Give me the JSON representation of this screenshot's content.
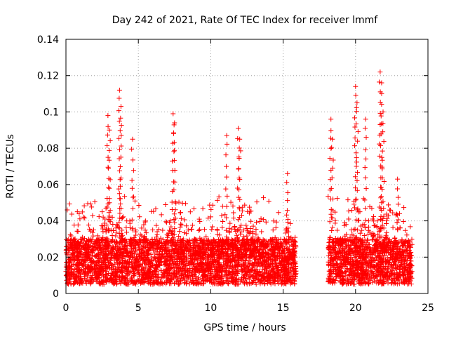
{
  "chart_data": {
    "type": "scatter",
    "title": "Day 242 of 2021, Rate Of TEC Index for receiver lmmf",
    "xlabel": "GPS time / hours",
    "ylabel": "ROTI / TECUs",
    "xlim": [
      0,
      25
    ],
    "ylim": [
      0,
      0.14
    ],
    "xticks": [
      0,
      5,
      10,
      15,
      20,
      25
    ],
    "xtick_labels": [
      "0",
      "5",
      "10",
      "15",
      "20",
      "25"
    ],
    "yticks": [
      0,
      0.02,
      0.04,
      0.06,
      0.08,
      0.1,
      0.12,
      0.14
    ],
    "ytick_labels": [
      "0",
      "0.02",
      "0.04",
      "0.06",
      "0.08",
      "0.1",
      "0.12",
      "0.14"
    ],
    "grid": true,
    "marker": "plus",
    "color": "#ff0000",
    "coverage_hours": [
      [
        0.0,
        15.9
      ],
      [
        18.1,
        23.9
      ]
    ],
    "gap_hours": [
      15.9,
      18.1
    ],
    "typical_range": [
      0.005,
      0.03
    ],
    "series": [
      {
        "name": "ROTI",
        "x": [
          0.2,
          0.5,
          0.8,
          1.1,
          1.4,
          1.6,
          1.9,
          2.2,
          2.5,
          2.8,
          3.0,
          3.2,
          3.5,
          3.7,
          3.9,
          4.2,
          4.5,
          4.8,
          5.1,
          5.4,
          5.7,
          6.0,
          6.3,
          6.6,
          6.9,
          7.2,
          7.4,
          7.7,
          8.0,
          8.3,
          8.6,
          8.9,
          9.2,
          9.5,
          9.8,
          10.1,
          10.4,
          10.7,
          11.0,
          11.2,
          11.5,
          11.8,
          12.1,
          12.4,
          12.7,
          13.0,
          13.3,
          13.6,
          13.9,
          14.2,
          14.5,
          14.8,
          15.1,
          15.4,
          15.7,
          18.2,
          18.5,
          18.8,
          19.1,
          19.4,
          19.7,
          20.0,
          20.3,
          20.6,
          20.9,
          21.2,
          21.5,
          21.8,
          22.1,
          22.4,
          22.7,
          23.0,
          23.3,
          23.6,
          23.8,
          2.9,
          3.0,
          3.7,
          3.8,
          4.6,
          7.4,
          7.5,
          11.1,
          11.9,
          12.0,
          15.3,
          18.3,
          18.4,
          20.0,
          20.1,
          20.7,
          21.7,
          21.8,
          21.9,
          22.9
        ],
        "y": [
          0.014,
          0.022,
          0.018,
          0.03,
          0.025,
          0.021,
          0.035,
          0.028,
          0.045,
          0.03,
          0.05,
          0.042,
          0.038,
          0.055,
          0.032,
          0.04,
          0.027,
          0.035,
          0.024,
          0.03,
          0.022,
          0.028,
          0.034,
          0.02,
          0.026,
          0.04,
          0.03,
          0.022,
          0.019,
          0.025,
          0.021,
          0.03,
          0.018,
          0.024,
          0.02,
          0.017,
          0.023,
          0.02,
          0.028,
          0.025,
          0.019,
          0.032,
          0.022,
          0.018,
          0.02,
          0.026,
          0.03,
          0.021,
          0.018,
          0.024,
          0.02,
          0.017,
          0.022,
          0.016,
          0.019,
          0.03,
          0.024,
          0.02,
          0.026,
          0.022,
          0.035,
          0.03,
          0.045,
          0.038,
          0.04,
          0.033,
          0.04,
          0.05,
          0.032,
          0.025,
          0.028,
          0.023,
          0.02,
          0.022,
          0.018,
          0.098,
          0.09,
          0.112,
          0.103,
          0.085,
          0.099,
          0.094,
          0.087,
          0.091,
          0.085,
          0.066,
          0.096,
          0.085,
          0.114,
          0.105,
          0.096,
          0.122,
          0.116,
          0.1,
          0.063
        ]
      }
    ]
  }
}
